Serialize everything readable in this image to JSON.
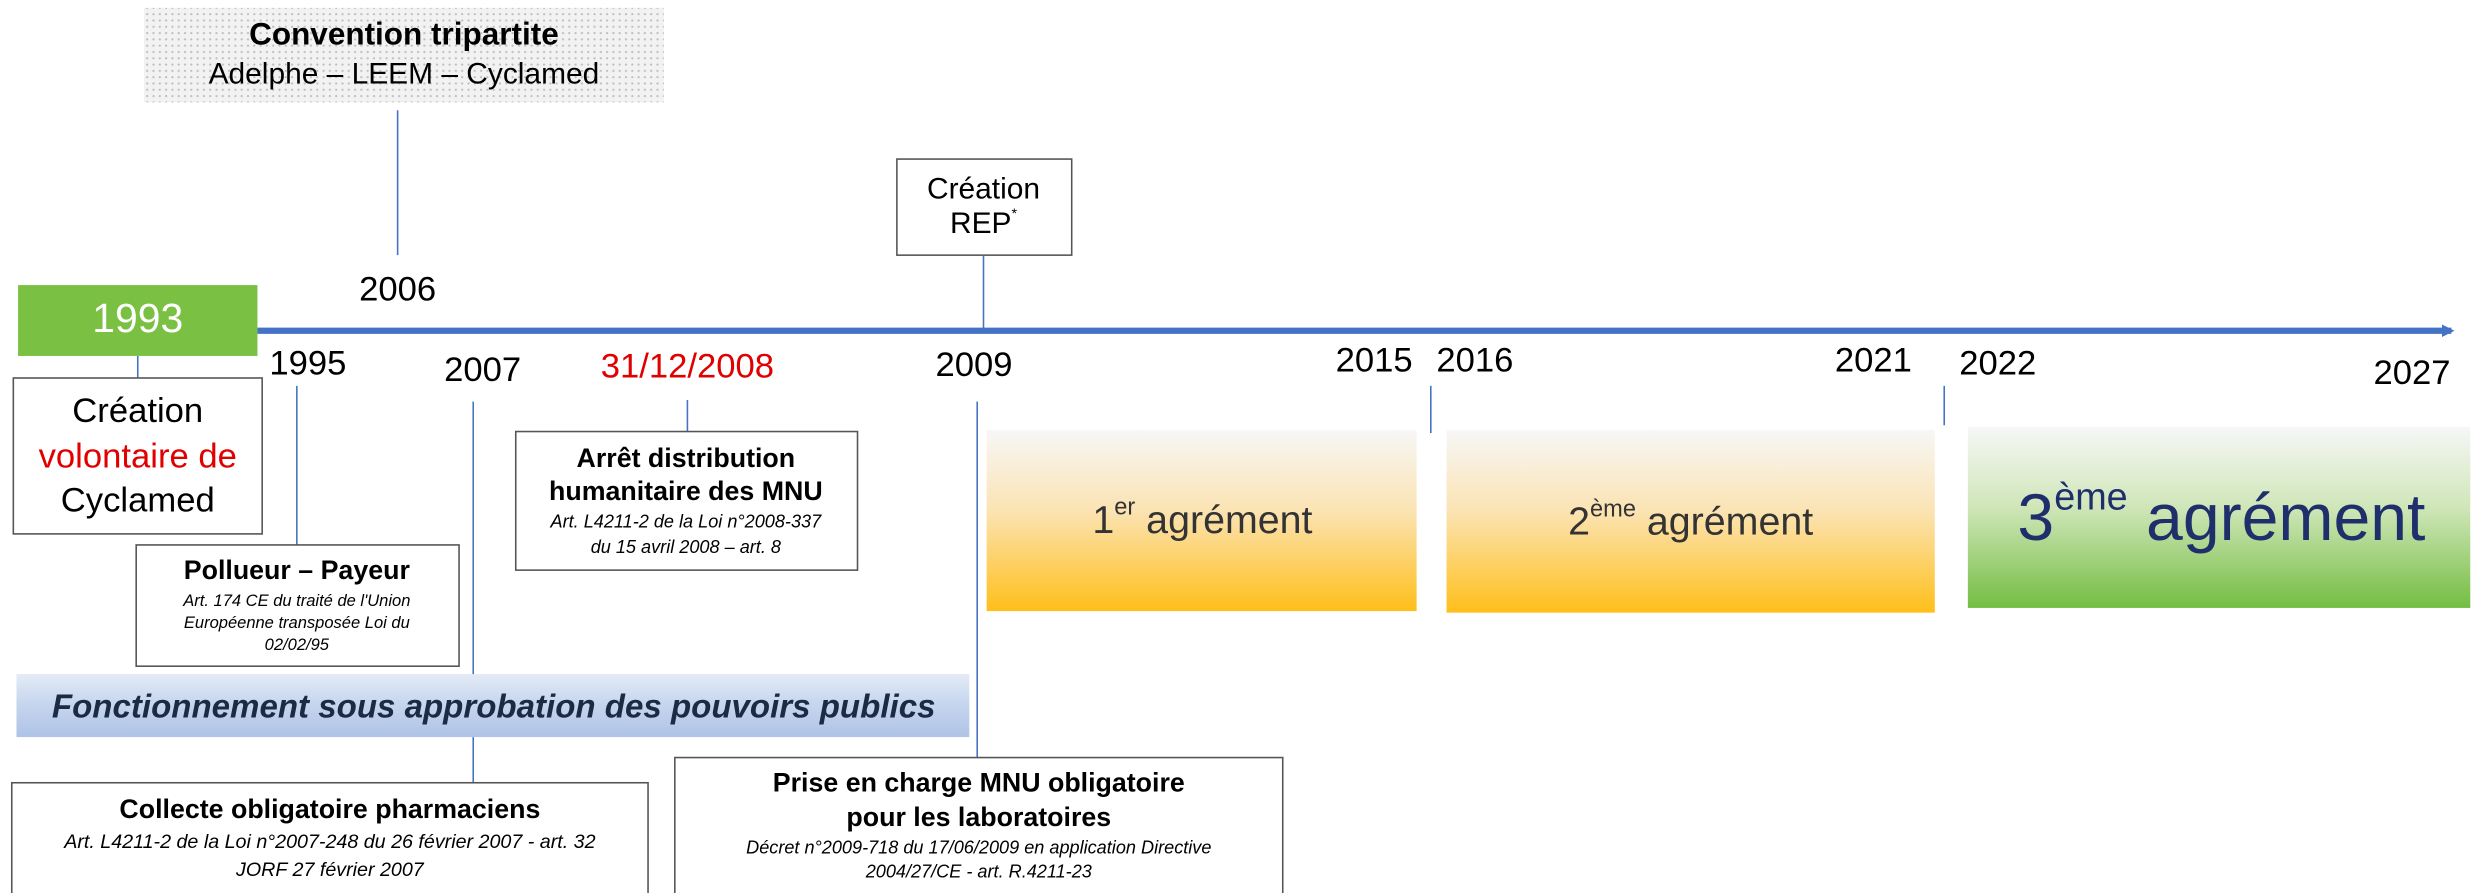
{
  "convention": {
    "title": "Convention tripartite",
    "subtitle": "Adelphe – LEEM – Cyclamed"
  },
  "years": [
    "1993",
    "1995",
    "2006",
    "2007",
    "31/12/2008",
    "2009",
    "2015",
    "2016",
    "2021",
    "2022",
    "2027"
  ],
  "creation_rep": {
    "line1": "Création",
    "line2": "REP",
    "mark": "*"
  },
  "creation_cyclamed": {
    "lines": [
      "Création",
      "volontaire de",
      "Cyclamed"
    ]
  },
  "pollueur": {
    "title": "Pollueur – Payeur",
    "lines": [
      "Art. 174 CE du traité de l'Union",
      "Européenne transposée Loi du",
      "02/02/95"
    ]
  },
  "arret": {
    "title": [
      "Arrêt distribution",
      "humanitaire des MNU"
    ],
    "lines": [
      "Art. L4211-2 de la Loi n°2008-337",
      "du 15 avril 2008 – art. 8"
    ]
  },
  "banner": "Fonctionnement sous approbation des pouvoirs publics",
  "collecte": {
    "title": "Collecte obligatoire pharmaciens",
    "lines": [
      "Art. L4211-2  de la Loi n°2007-248 du 26 février 2007 - art. 32",
      "JORF 27 février 2007"
    ]
  },
  "prise": {
    "title": [
      "Prise en charge MNU obligatoire",
      "pour les laboratoires"
    ],
    "lines": [
      "Décret n°2009-718 du 17/06/2009 en application Directive",
      "2004/27/CE - art. R.4211-23"
    ]
  },
  "agrements": [
    {
      "number": "1",
      "suffix": "er",
      "label": " agrément"
    },
    {
      "number": "2",
      "suffix": "ème",
      "label": " agrément"
    },
    {
      "number": "3",
      "suffix": "ème",
      "label": " agrément"
    }
  ]
}
